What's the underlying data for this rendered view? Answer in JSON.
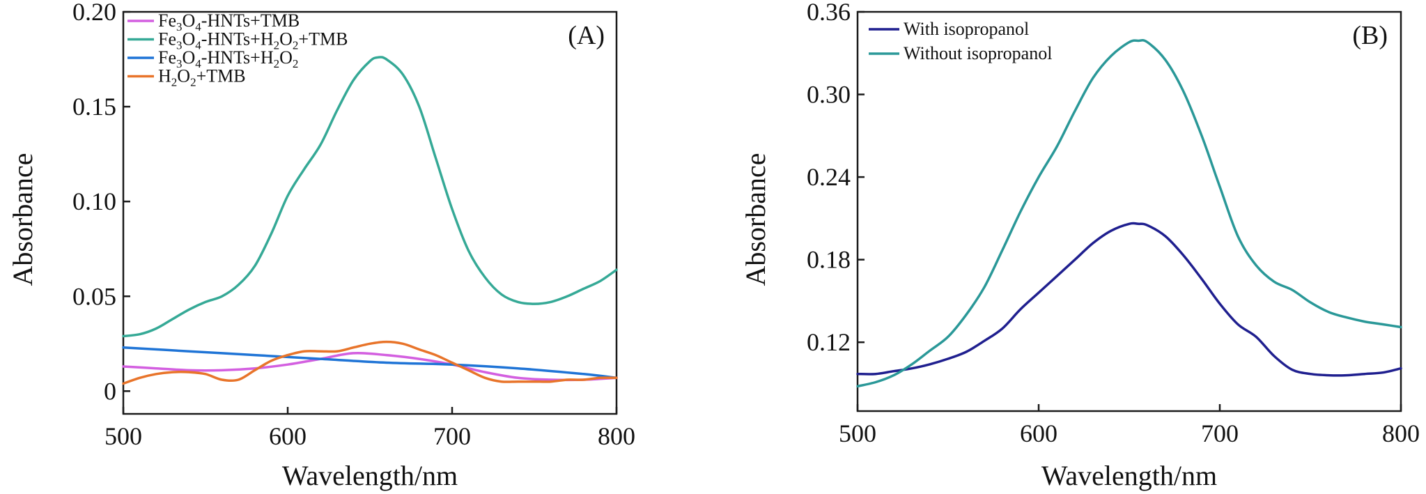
{
  "chart_data": [
    {
      "id": "A",
      "type": "line",
      "panel_label": "(A)",
      "xlabel": "Wavelength/nm",
      "ylabel": "Absorbance",
      "xlim": [
        500,
        800
      ],
      "ylim": [
        -0.012,
        0.2
      ],
      "xticks": [
        500,
        600,
        700,
        800
      ],
      "xtick_labels": [
        "500",
        "600",
        "700",
        "800"
      ],
      "yticks": [
        0,
        0.05,
        0.1,
        0.15,
        0.2
      ],
      "ytick_labels": [
        "0",
        "0.05",
        "0.10",
        "0.15",
        "0.20"
      ],
      "legend_position": "top-left",
      "series": [
        {
          "name": "Fe3O4-HNTs+TMB",
          "legend_main": [
            "Fe",
            "O",
            "-HNTs+TMB"
          ],
          "legend_sub": [
            "3",
            "4"
          ],
          "color": "#d35fe0",
          "x": [
            500,
            520,
            540,
            560,
            580,
            600,
            620,
            640,
            660,
            680,
            700,
            720,
            740,
            760,
            780,
            800
          ],
          "y": [
            0.013,
            0.012,
            0.011,
            0.011,
            0.012,
            0.014,
            0.017,
            0.02,
            0.019,
            0.017,
            0.014,
            0.01,
            0.007,
            0.006,
            0.006,
            0.007
          ]
        },
        {
          "name": "Fe3O4-HNTs+H2O2+TMB",
          "legend_main": [
            "Fe",
            "O",
            "-HNTs+H",
            "O",
            "+TMB"
          ],
          "legend_sub": [
            "3",
            "4",
            "2",
            "2"
          ],
          "color": "#35a996",
          "x": [
            500,
            510,
            520,
            530,
            540,
            550,
            560,
            570,
            580,
            590,
            600,
            610,
            620,
            630,
            640,
            650,
            655,
            660,
            670,
            680,
            690,
            700,
            710,
            720,
            730,
            740,
            750,
            760,
            770,
            780,
            790,
            800
          ],
          "y": [
            0.029,
            0.03,
            0.033,
            0.038,
            0.043,
            0.047,
            0.05,
            0.056,
            0.066,
            0.083,
            0.103,
            0.117,
            0.13,
            0.148,
            0.164,
            0.174,
            0.176,
            0.175,
            0.167,
            0.15,
            0.123,
            0.096,
            0.074,
            0.06,
            0.051,
            0.047,
            0.046,
            0.047,
            0.05,
            0.054,
            0.058,
            0.064
          ]
        },
        {
          "name": "Fe3O4-HNTs+H2O2",
          "legend_main": [
            "Fe",
            "O",
            "-HNTs+H",
            "O"
          ],
          "legend_sub": [
            "3",
            "4",
            "2",
            "2"
          ],
          "color": "#1f74d6",
          "x": [
            500,
            540,
            580,
            620,
            660,
            700,
            740,
            780,
            800
          ],
          "y": [
            0.023,
            0.021,
            0.019,
            0.017,
            0.015,
            0.014,
            0.012,
            0.009,
            0.007
          ]
        },
        {
          "name": "H2O2+TMB",
          "legend_main": [
            "H",
            "O",
            "+TMB"
          ],
          "legend_sub": [
            "2",
            "2"
          ],
          "color": "#e8742a",
          "x": [
            500,
            510,
            520,
            530,
            540,
            550,
            560,
            570,
            580,
            590,
            600,
            610,
            620,
            630,
            640,
            650,
            660,
            670,
            680,
            690,
            700,
            710,
            720,
            730,
            740,
            750,
            760,
            770,
            780,
            790,
            800
          ],
          "y": [
            0.004,
            0.007,
            0.009,
            0.01,
            0.01,
            0.009,
            0.006,
            0.006,
            0.011,
            0.016,
            0.019,
            0.021,
            0.021,
            0.021,
            0.023,
            0.025,
            0.026,
            0.025,
            0.022,
            0.019,
            0.015,
            0.011,
            0.007,
            0.005,
            0.005,
            0.005,
            0.005,
            0.006,
            0.006,
            0.007,
            0.007
          ]
        }
      ]
    },
    {
      "id": "B",
      "type": "line",
      "panel_label": "(B)",
      "xlabel": "Wavelength/nm",
      "ylabel": "Absorbance",
      "xlim": [
        500,
        800
      ],
      "ylim": [
        0.07,
        0.36
      ],
      "xticks": [
        500,
        600,
        700,
        800
      ],
      "xtick_labels": [
        "500",
        "600",
        "700",
        "800"
      ],
      "yticks": [
        0.12,
        0.18,
        0.24,
        0.3,
        0.36
      ],
      "ytick_labels": [
        "0.12",
        "0.18",
        "0.24",
        "0.30",
        "0.36"
      ],
      "legend_position": "top-left",
      "series": [
        {
          "name": "With isopropanol",
          "legend_main": [
            "With isopropanol"
          ],
          "legend_sub": [],
          "color": "#1f1f8f",
          "x": [
            500,
            510,
            520,
            530,
            540,
            550,
            560,
            570,
            580,
            590,
            600,
            610,
            620,
            630,
            640,
            650,
            655,
            660,
            670,
            680,
            690,
            700,
            710,
            720,
            730,
            740,
            750,
            760,
            770,
            780,
            790,
            800
          ],
          "y": [
            0.097,
            0.097,
            0.099,
            0.101,
            0.104,
            0.108,
            0.113,
            0.121,
            0.13,
            0.144,
            0.156,
            0.168,
            0.18,
            0.192,
            0.201,
            0.206,
            0.206,
            0.205,
            0.197,
            0.183,
            0.166,
            0.148,
            0.133,
            0.124,
            0.11,
            0.1,
            0.097,
            0.096,
            0.096,
            0.097,
            0.098,
            0.101
          ]
        },
        {
          "name": "Without isopropanol",
          "legend_main": [
            "Without isopropanol"
          ],
          "legend_sub": [],
          "color": "#2a9898",
          "x": [
            500,
            510,
            520,
            530,
            540,
            550,
            560,
            570,
            580,
            590,
            600,
            610,
            620,
            630,
            640,
            650,
            655,
            660,
            670,
            680,
            690,
            700,
            710,
            720,
            730,
            740,
            750,
            760,
            770,
            780,
            790,
            800
          ],
          "y": [
            0.088,
            0.091,
            0.096,
            0.104,
            0.114,
            0.124,
            0.14,
            0.16,
            0.187,
            0.215,
            0.24,
            0.262,
            0.288,
            0.312,
            0.328,
            0.338,
            0.339,
            0.338,
            0.325,
            0.302,
            0.27,
            0.233,
            0.197,
            0.176,
            0.164,
            0.158,
            0.149,
            0.142,
            0.138,
            0.135,
            0.133,
            0.131
          ]
        }
      ]
    }
  ]
}
